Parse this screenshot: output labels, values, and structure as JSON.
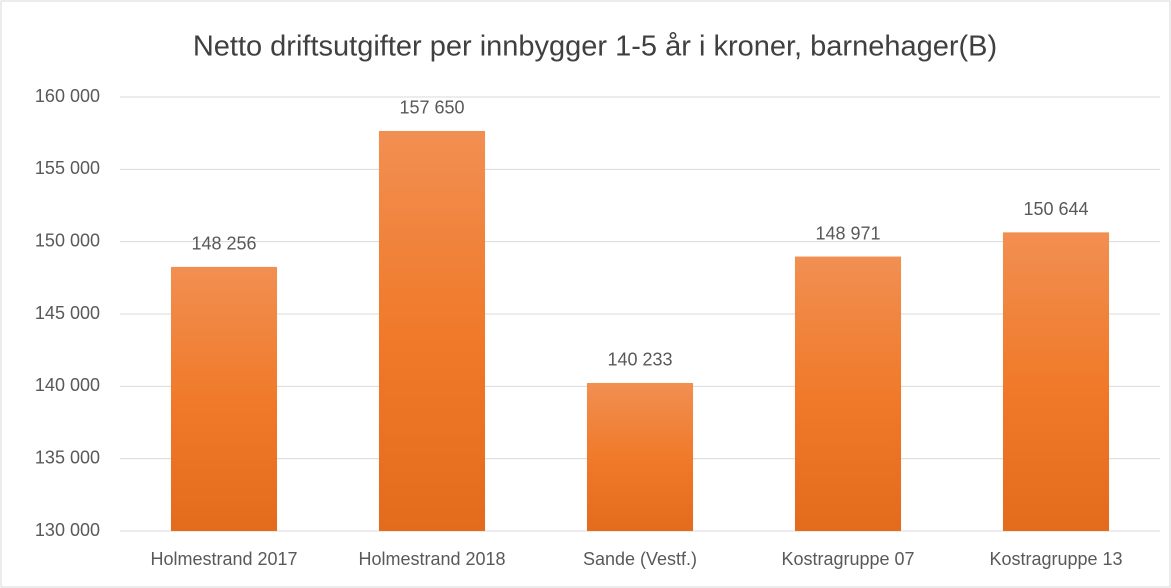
{
  "chart_data": {
    "type": "bar",
    "title": "Netto driftsutgifter per innbygger 1-5 år i kroner, barnehager(B)",
    "categories": [
      "Holmestrand 2017",
      "Holmestrand 2018",
      "Sande (Vestf.)",
      "Kostragruppe 07",
      "Kostragruppe 13"
    ],
    "values": [
      148256,
      157650,
      140233,
      148971,
      150644
    ],
    "value_labels": [
      "148 256",
      "157 650",
      "140 233",
      "148 971",
      "150 644"
    ],
    "color": "#ed7d31",
    "ylim": [
      130000,
      160000
    ],
    "yticks": [
      {
        "value": 130000,
        "label": "130 000"
      },
      {
        "value": 135000,
        "label": "135 000"
      },
      {
        "value": 140000,
        "label": "140 000"
      },
      {
        "value": 145000,
        "label": "145 000"
      },
      {
        "value": 150000,
        "label": "150 000"
      },
      {
        "value": 155000,
        "label": "155 000"
      },
      {
        "value": 160000,
        "label": "160 000"
      }
    ],
    "grid": true
  }
}
